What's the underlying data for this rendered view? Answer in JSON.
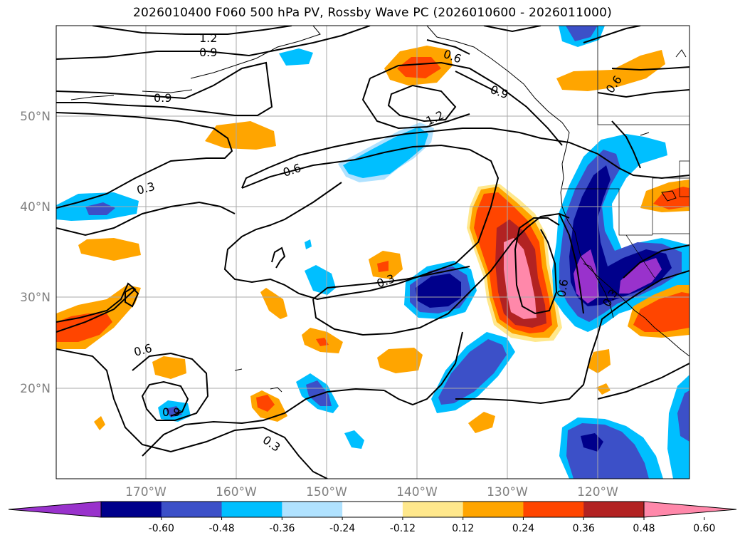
{
  "title": "2026010400 F060 500 hPa PV, Rossby Wave PC (2026010600 - 2026011000)",
  "axes": {
    "lat_labels": [
      "50°N",
      "40°N",
      "30°N",
      "20°N"
    ],
    "lon_labels": [
      "170°W",
      "160°W",
      "150°W",
      "140°W",
      "130°W",
      "120°W"
    ]
  },
  "contour_labels": [
    "1.2",
    "0.9",
    "0.9",
    "1.2",
    "0.9",
    "0.6",
    "0.6",
    "0.3",
    "0.3",
    "0.6",
    "0.9",
    "0.3",
    "0.6",
    "0.3",
    "0.6"
  ],
  "colorbar": {
    "ticks": [
      "-0.60",
      "-0.48",
      "-0.36",
      "-0.24",
      "-0.12",
      "0.12",
      "0.24",
      "0.36",
      "0.48",
      "0.60"
    ],
    "colors": [
      "#9932cc",
      "#00008b",
      "#3c50c8",
      "#00bfff",
      "#b0e2ff",
      "#ffffff",
      "#ffe88c",
      "#ffa500",
      "#ff4500",
      "#b22222",
      "#ff88aa"
    ]
  },
  "colors": {
    "purple": "#9932cc",
    "navy": "#00008b",
    "blue": "#3c50c8",
    "cyan": "#00bfff",
    "lightblue": "#b0e2ff",
    "yellow": "#ffe88c",
    "orange": "#ffa500",
    "red": "#ff4500",
    "darkred": "#b22222",
    "pink": "#ff88aa"
  }
}
